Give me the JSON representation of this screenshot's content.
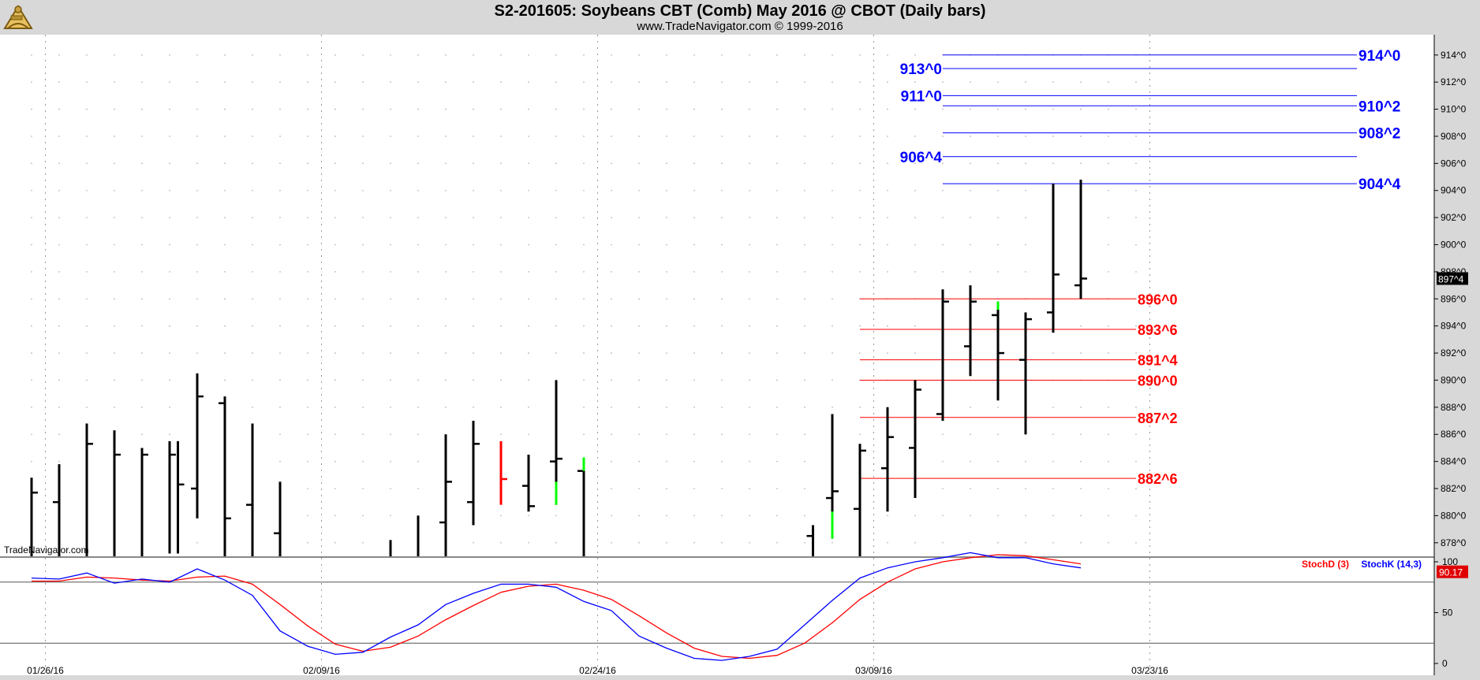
{
  "header": {
    "title": "S2-201605:  Soybeans CBT (Comb) May 2016 @ CBOT  (Daily bars)",
    "subtitle": "www.TradeNavigator.com © 1999-2016"
  },
  "watermark": "TradeNavigator.com",
  "colors": {
    "bar": "#000000",
    "up": "#00ff00",
    "down": "#ff0000",
    "blue": "#0000ff",
    "red": "#ff0000"
  },
  "chart_data": {
    "type": "ohlc",
    "title": "S2-201605:  Soybeans CBT (Comb) May 2016 @ CBOT  (Daily bars)",
    "ylim": [
      877,
      915.5
    ],
    "y_ticks": [
      "878^0",
      "880^0",
      "882^0",
      "884^0",
      "886^0",
      "888^0",
      "890^0",
      "892^0",
      "894^0",
      "896^0",
      "898^0",
      "900^0",
      "902^0",
      "904^0",
      "906^0",
      "908^0",
      "910^0",
      "912^0",
      "914^0"
    ],
    "y_tick_values": [
      878,
      880,
      882,
      884,
      886,
      888,
      890,
      892,
      894,
      896,
      898,
      900,
      902,
      904,
      906,
      908,
      910,
      912,
      914
    ],
    "x_labels": [
      {
        "label": "01/26/16",
        "index": 0
      },
      {
        "label": "02/09/16",
        "index": 10
      },
      {
        "label": "02/24/16",
        "index": 20
      },
      {
        "label": "03/09/16",
        "index": 30
      },
      {
        "label": "03/23/16",
        "index": 40
      }
    ],
    "last_price": "897^4",
    "bars": [
      {
        "i": -0.5,
        "h": 882.8,
        "l": 877,
        "o": null,
        "c": 881.7
      },
      {
        "i": 0.5,
        "h": 883.8,
        "l": 877,
        "o": 881.0,
        "c": null
      },
      {
        "i": 1.5,
        "h": 886.8,
        "l": 877,
        "o": null,
        "c": 885.3
      },
      {
        "i": 2.5,
        "h": 886.3,
        "l": 877,
        "o": null,
        "c": 884.5
      },
      {
        "i": 3.5,
        "h": 885.0,
        "l": 877,
        "o": null,
        "c": 884.5
      },
      {
        "i": 4.5,
        "h": 885.5,
        "l": 877.2,
        "o": null,
        "c": 884.5
      },
      {
        "i": 4.8,
        "h": 885.5,
        "l": 877.2,
        "o": null,
        "c": 882.3
      },
      {
        "i": 5.5,
        "h": 890.5,
        "l": 879.8,
        "o": 882.0,
        "c": 888.8
      },
      {
        "i": 6.5,
        "h": 888.8,
        "l": 877,
        "o": 888.3,
        "c": 879.8
      },
      {
        "i": 7.5,
        "h": 886.8,
        "l": 877,
        "o": 880.8,
        "c": null
      },
      {
        "i": 8.5,
        "h": 882.5,
        "l": 877,
        "o": 878.7,
        "c": null
      },
      {
        "i": 12.5,
        "h": 878.2,
        "l": 877,
        "o": null,
        "c": null
      },
      {
        "i": 13.5,
        "h": 880.0,
        "l": 877,
        "o": null,
        "c": null
      },
      {
        "i": 14.5,
        "h": 886.0,
        "l": 877,
        "o": 879.5,
        "c": 882.5
      },
      {
        "i": 15.5,
        "h": 887.0,
        "l": 879.3,
        "o": 881.0,
        "c": 885.3
      },
      {
        "i": 16.5,
        "h": 885.5,
        "l": 880.8,
        "o": null,
        "c": 882.7,
        "color": "down"
      },
      {
        "i": 17.5,
        "h": 884.5,
        "l": 880.3,
        "o": 882.2,
        "c": 880.7
      },
      {
        "i": 18.5,
        "h": 890.0,
        "l": 880.8,
        "o": 884.0,
        "c": 884.2
      },
      {
        "i": 19.5,
        "h": 884.3,
        "l": 877,
        "o": 883.3,
        "c": null
      },
      {
        "i": 27.8,
        "h": 879.3,
        "l": 877,
        "o": 878.5,
        "c": null
      },
      {
        "i": 28.5,
        "h": 887.5,
        "l": 878.3,
        "o": 881.3,
        "c": 881.8
      },
      {
        "i": 29.5,
        "h": 885.3,
        "l": 877,
        "o": 880.5,
        "c": 884.8
      },
      {
        "i": 30.5,
        "h": 888.0,
        "l": 880.3,
        "o": 883.5,
        "c": 885.8
      },
      {
        "i": 31.5,
        "h": 890.0,
        "l": 881.3,
        "o": 885.0,
        "c": 889.3
      },
      {
        "i": 32.5,
        "h": 896.7,
        "l": 887.0,
        "o": 887.5,
        "c": 895.8
      },
      {
        "i": 33.5,
        "h": 897.0,
        "l": 890.3,
        "o": 892.5,
        "c": 895.8
      },
      {
        "i": 34.5,
        "h": 895.8,
        "l": 888.5,
        "o": 894.8,
        "c": 892.0
      },
      {
        "i": 35.5,
        "h": 895.0,
        "l": 886.0,
        "o": 891.5,
        "c": 894.5
      },
      {
        "i": 36.5,
        "h": 904.5,
        "l": 893.5,
        "o": 895.0,
        "c": 897.8
      },
      {
        "i": 37.5,
        "h": 904.8,
        "l": 896.0,
        "o": 897.0,
        "c": 897.5
      }
    ],
    "levels": [
      {
        "label": "914^0",
        "value": 914.0,
        "color": "blue",
        "side": "right"
      },
      {
        "label": "913^0",
        "value": 913.0,
        "color": "blue",
        "side": "left"
      },
      {
        "label": "911^0",
        "value": 911.0,
        "color": "blue",
        "side": "left"
      },
      {
        "label": "910^2",
        "value": 910.25,
        "color": "blue",
        "side": "right"
      },
      {
        "label": "908^2",
        "value": 908.25,
        "color": "blue",
        "side": "right"
      },
      {
        "label": "906^4",
        "value": 906.5,
        "color": "blue",
        "side": "left"
      },
      {
        "label": "904^4",
        "value": 904.5,
        "color": "blue",
        "side": "right"
      },
      {
        "label": "896^0",
        "value": 896.0,
        "color": "red",
        "side": "right"
      },
      {
        "label": "893^6",
        "value": 893.75,
        "color": "red",
        "side": "right"
      },
      {
        "label": "891^4",
        "value": 891.5,
        "color": "red",
        "side": "right"
      },
      {
        "label": "890^0",
        "value": 890.0,
        "color": "red",
        "side": "right"
      },
      {
        "label": "887^2",
        "value": 887.25,
        "color": "red",
        "side": "right"
      },
      {
        "label": "882^6",
        "value": 882.75,
        "color": "red",
        "side": "right"
      }
    ],
    "stochastic": {
      "ylim": [
        0,
        100
      ],
      "y_ticks": [
        "0",
        "50",
        "100"
      ],
      "y_tick_values": [
        0,
        50,
        100
      ],
      "last_value": "90.17",
      "stochD_label": "StochD (3)",
      "stochK_label": "StochK (14,3)",
      "stochK": [
        {
          "i": -0.5,
          "v": 84
        },
        {
          "i": 0.5,
          "v": 83
        },
        {
          "i": 1.5,
          "v": 89
        },
        {
          "i": 2.5,
          "v": 79
        },
        {
          "i": 3.5,
          "v": 83
        },
        {
          "i": 4.5,
          "v": 80
        },
        {
          "i": 5.5,
          "v": 93
        },
        {
          "i": 6.5,
          "v": 82
        },
        {
          "i": 7.5,
          "v": 67
        },
        {
          "i": 8.5,
          "v": 32
        },
        {
          "i": 9.5,
          "v": 17
        },
        {
          "i": 10.5,
          "v": 9
        },
        {
          "i": 11.5,
          "v": 11
        },
        {
          "i": 12.5,
          "v": 26
        },
        {
          "i": 13.5,
          "v": 38
        },
        {
          "i": 14.5,
          "v": 58
        },
        {
          "i": 15.5,
          "v": 69
        },
        {
          "i": 16.5,
          "v": 78
        },
        {
          "i": 17.5,
          "v": 78
        },
        {
          "i": 18.5,
          "v": 75
        },
        {
          "i": 19.5,
          "v": 61
        },
        {
          "i": 20.5,
          "v": 52
        },
        {
          "i": 21.5,
          "v": 27
        },
        {
          "i": 22.5,
          "v": 15
        },
        {
          "i": 23.5,
          "v": 5
        },
        {
          "i": 24.5,
          "v": 3
        },
        {
          "i": 25.5,
          "v": 7
        },
        {
          "i": 26.5,
          "v": 14
        },
        {
          "i": 27.5,
          "v": 38
        },
        {
          "i": 28.5,
          "v": 62
        },
        {
          "i": 29.5,
          "v": 84
        },
        {
          "i": 30.5,
          "v": 94
        },
        {
          "i": 31.5,
          "v": 100
        },
        {
          "i": 32.5,
          "v": 104
        },
        {
          "i": 33.5,
          "v": 109
        },
        {
          "i": 34.5,
          "v": 104
        },
        {
          "i": 35.5,
          "v": 104
        },
        {
          "i": 36.5,
          "v": 98
        },
        {
          "i": 37.5,
          "v": 94
        }
      ],
      "stochD": [
        {
          "i": -0.5,
          "v": 81
        },
        {
          "i": 0.5,
          "v": 81
        },
        {
          "i": 1.5,
          "v": 85
        },
        {
          "i": 2.5,
          "v": 84
        },
        {
          "i": 3.5,
          "v": 82
        },
        {
          "i": 4.5,
          "v": 81
        },
        {
          "i": 5.5,
          "v": 85
        },
        {
          "i": 6.5,
          "v": 86
        },
        {
          "i": 7.5,
          "v": 78
        },
        {
          "i": 8.5,
          "v": 58
        },
        {
          "i": 9.5,
          "v": 37
        },
        {
          "i": 10.5,
          "v": 19
        },
        {
          "i": 11.5,
          "v": 12
        },
        {
          "i": 12.5,
          "v": 16
        },
        {
          "i": 13.5,
          "v": 27
        },
        {
          "i": 14.5,
          "v": 43
        },
        {
          "i": 15.5,
          "v": 57
        },
        {
          "i": 16.5,
          "v": 70
        },
        {
          "i": 17.5,
          "v": 76
        },
        {
          "i": 18.5,
          "v": 78
        },
        {
          "i": 19.5,
          "v": 72
        },
        {
          "i": 20.5,
          "v": 63
        },
        {
          "i": 21.5,
          "v": 47
        },
        {
          "i": 22.5,
          "v": 30
        },
        {
          "i": 23.5,
          "v": 15
        },
        {
          "i": 24.5,
          "v": 7
        },
        {
          "i": 25.5,
          "v": 5
        },
        {
          "i": 26.5,
          "v": 8
        },
        {
          "i": 27.5,
          "v": 20
        },
        {
          "i": 28.5,
          "v": 40
        },
        {
          "i": 29.5,
          "v": 63
        },
        {
          "i": 30.5,
          "v": 80
        },
        {
          "i": 31.5,
          "v": 93
        },
        {
          "i": 32.5,
          "v": 100
        },
        {
          "i": 33.5,
          "v": 104
        },
        {
          "i": 34.5,
          "v": 107
        },
        {
          "i": 35.5,
          "v": 106
        },
        {
          "i": 36.5,
          "v": 102
        },
        {
          "i": 37.5,
          "v": 98
        }
      ],
      "ref_lines": [
        20,
        80
      ]
    }
  }
}
